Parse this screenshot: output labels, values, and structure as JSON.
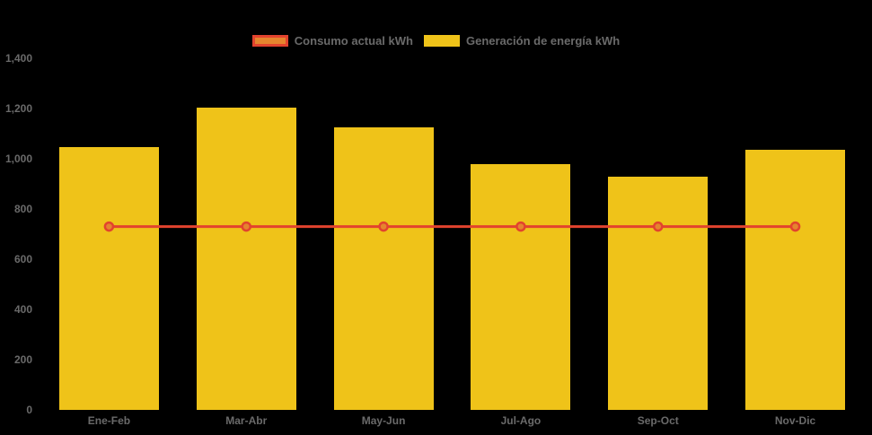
{
  "chart_data": {
    "type": "bar",
    "categories": [
      "Ene-Feb",
      "Mar-Abr",
      "May-Jun",
      "Jul-Ago",
      "Sep-Oct",
      "Nov-Dic"
    ],
    "series": [
      {
        "name": "Consumo actual kWh",
        "type": "line",
        "values": [
          730,
          730,
          730,
          730,
          730,
          730
        ],
        "line_color": "#e2432e",
        "marker_fill": "#e5852e"
      },
      {
        "name": "Generación de energía kWh",
        "type": "bar",
        "values": [
          1045,
          1205,
          1125,
          978,
          928,
          1035
        ],
        "bar_color": "#efc319"
      }
    ],
    "title": "",
    "xlabel": "",
    "ylabel": "",
    "ylim": [
      0,
      1400
    ],
    "y_tick_step": 200,
    "y_tick_labels": [
      "0",
      "200",
      "400",
      "600",
      "800",
      "1,000",
      "1,200",
      "1,400"
    ],
    "grid": false,
    "legend_position": "top-center",
    "background_color": "#000000",
    "axis_label_color": "#6a6a6a"
  },
  "legend": {
    "consumo_label": "Consumo actual kWh",
    "generacion_label": "Generación de energía kWh"
  }
}
